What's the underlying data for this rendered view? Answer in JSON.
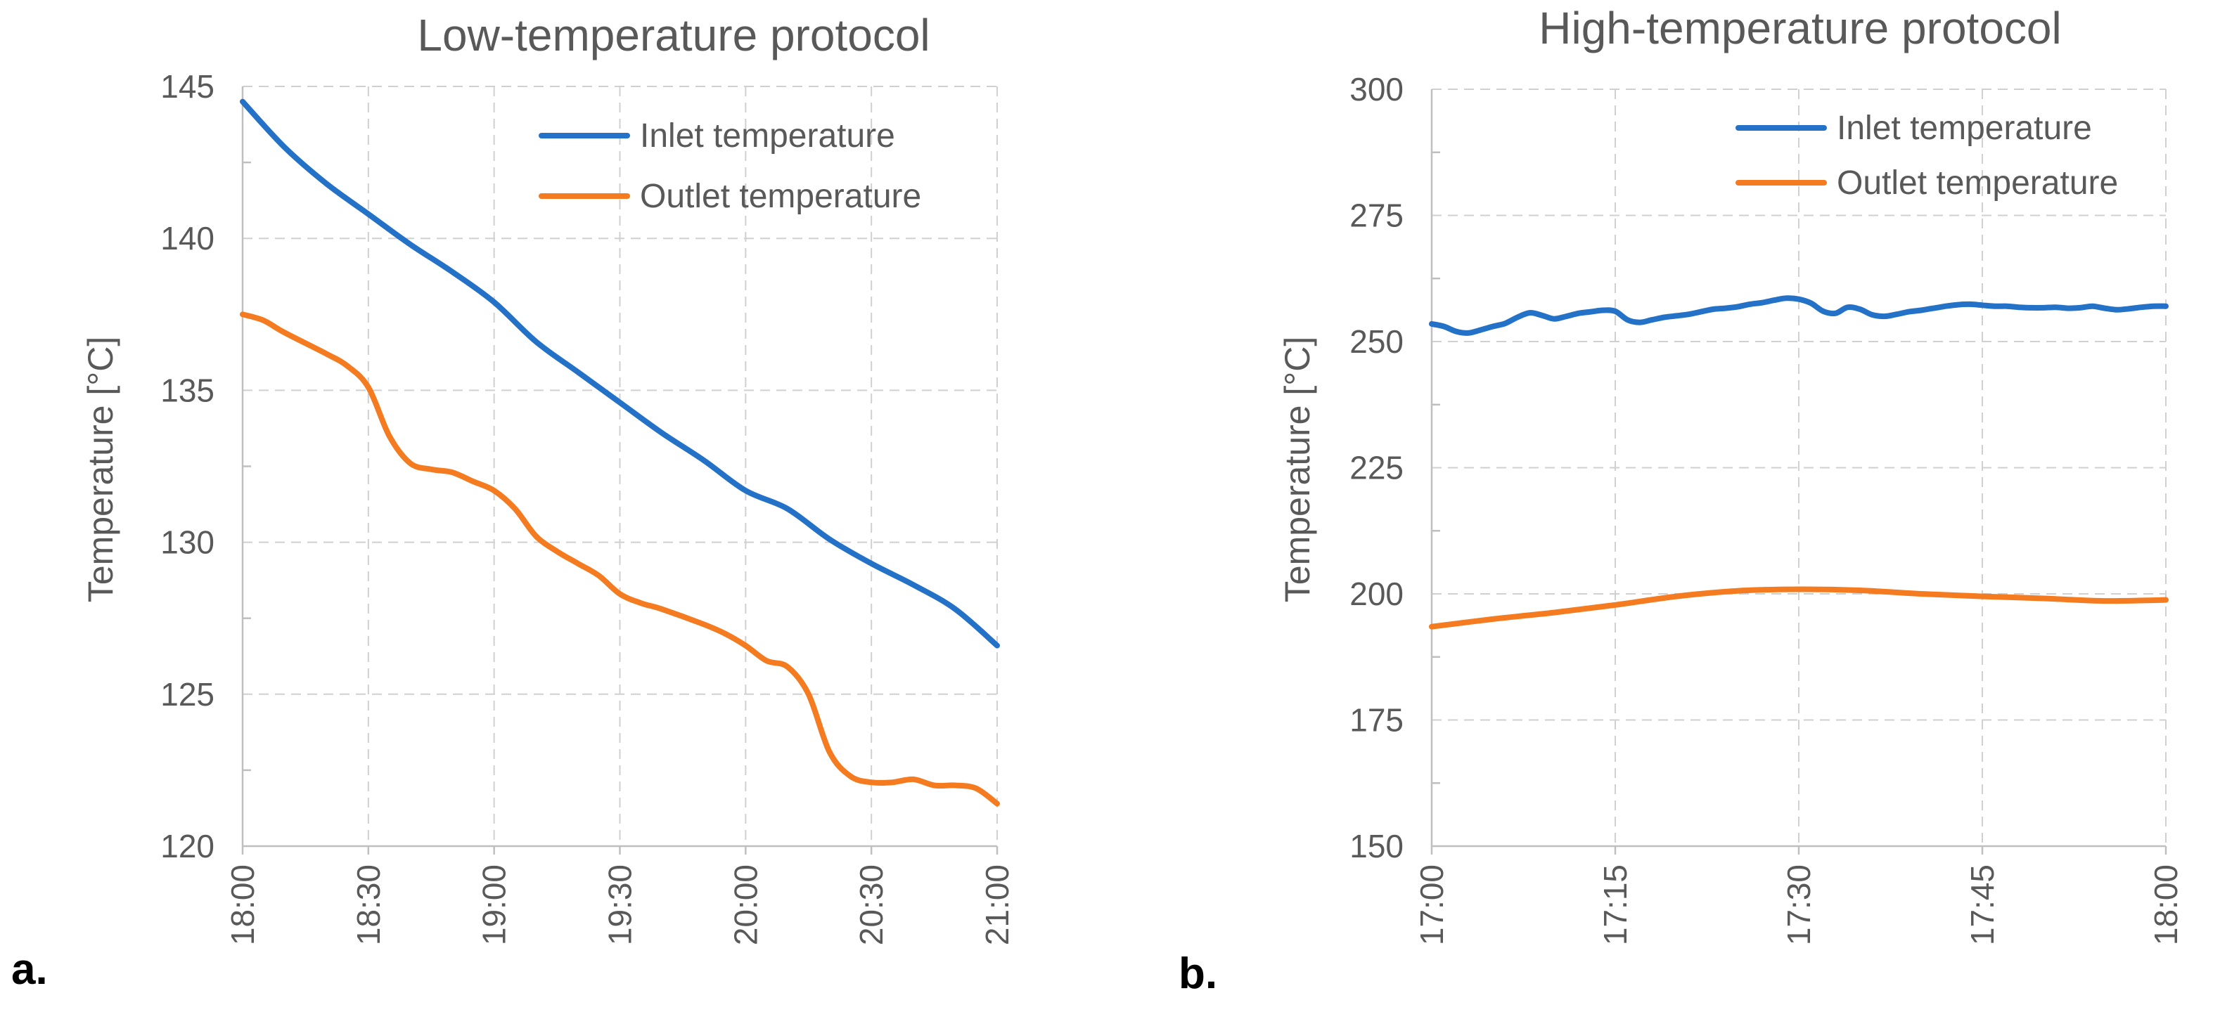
{
  "chart_data": [
    {
      "type": "line",
      "panel_label": "a.",
      "title": "Low-temperature protocol",
      "xlabel": "",
      "ylabel": "Temperature [°C]",
      "x_ticks": [
        "18:00",
        "18:30",
        "19:00",
        "19:30",
        "20:00",
        "20:30",
        "21:00"
      ],
      "x_range_minutes": [
        0,
        180
      ],
      "ylim": [
        120,
        145
      ],
      "y_ticks": [
        120,
        125,
        130,
        135,
        140,
        145
      ],
      "grid": true,
      "legend_position": "top-right",
      "series": [
        {
          "name": "Inlet temperature",
          "color": "#2472C8",
          "x_minutes": [
            0,
            10,
            20,
            30,
            40,
            50,
            60,
            70,
            80,
            90,
            100,
            110,
            120,
            130,
            140,
            150,
            160,
            170,
            180
          ],
          "values": [
            144.5,
            143.0,
            141.8,
            140.8,
            139.8,
            138.9,
            137.9,
            136.6,
            135.6,
            134.6,
            133.6,
            132.7,
            131.7,
            131.1,
            130.1,
            129.3,
            128.6,
            127.8,
            126.6
          ]
        },
        {
          "name": "Outlet temperature",
          "color": "#F47B20",
          "x_minutes": [
            0,
            5,
            10,
            20,
            25,
            30,
            35,
            40,
            45,
            50,
            55,
            60,
            65,
            70,
            75,
            80,
            85,
            90,
            95,
            100,
            110,
            115,
            120,
            125,
            130,
            135,
            140,
            145,
            150,
            155,
            160,
            165,
            170,
            175,
            180
          ],
          "values": [
            137.5,
            137.3,
            136.9,
            136.2,
            135.8,
            135.1,
            133.5,
            132.6,
            132.4,
            132.3,
            132.0,
            131.7,
            131.1,
            130.2,
            129.7,
            129.3,
            128.9,
            128.3,
            128.0,
            127.8,
            127.3,
            127.0,
            126.6,
            126.1,
            125.9,
            125.0,
            123.1,
            122.3,
            122.1,
            122.1,
            122.2,
            122.0,
            122.0,
            121.9,
            121.4
          ]
        }
      ]
    },
    {
      "type": "line",
      "panel_label": "b.",
      "title": "High-temperature protocol",
      "xlabel": "",
      "ylabel": "Temperature [°C]",
      "x_ticks": [
        "17:00",
        "17:15",
        "17:30",
        "17:45",
        "18:00"
      ],
      "x_range_minutes": [
        0,
        60
      ],
      "ylim": [
        150,
        300
      ],
      "y_ticks": [
        150,
        175,
        200,
        225,
        250,
        275,
        300
      ],
      "grid": true,
      "legend_position": "top-right",
      "series": [
        {
          "name": "Inlet temperature",
          "color": "#2472C8",
          "x_minutes": [
            0,
            1,
            2,
            3,
            4,
            5,
            6,
            7,
            8,
            9,
            10,
            11,
            12,
            13,
            14,
            15,
            16,
            17,
            18,
            19,
            20,
            21,
            22,
            23,
            24,
            25,
            26,
            27,
            28,
            29,
            30,
            31,
            32,
            33,
            34,
            35,
            36,
            37,
            38,
            39,
            40,
            41,
            42,
            43,
            44,
            45,
            46,
            47,
            48,
            49,
            50,
            51,
            52,
            53,
            54,
            55,
            56,
            57,
            58,
            59,
            60
          ],
          "values": [
            253.5,
            253.0,
            252.0,
            251.7,
            252.3,
            253.0,
            253.6,
            254.8,
            255.7,
            255.2,
            254.5,
            255.0,
            255.6,
            255.9,
            256.2,
            256.0,
            254.3,
            253.8,
            254.3,
            254.8,
            255.1,
            255.4,
            255.9,
            256.4,
            256.6,
            256.9,
            257.4,
            257.7,
            258.2,
            258.6,
            258.4,
            257.6,
            256.0,
            255.6,
            256.8,
            256.4,
            255.3,
            255.0,
            255.4,
            255.9,
            256.2,
            256.6,
            257.0,
            257.3,
            257.4,
            257.2,
            257.0,
            257.0,
            256.8,
            256.7,
            256.7,
            256.8,
            256.6,
            256.7,
            257.0,
            256.6,
            256.3,
            256.5,
            256.8,
            257.0,
            257.0
          ]
        },
        {
          "name": "Outlet temperature",
          "color": "#F47B20",
          "x_minutes": [
            0,
            5,
            10,
            15,
            20,
            25,
            30,
            35,
            40,
            45,
            50,
            55,
            60
          ],
          "values": [
            193.5,
            195.0,
            196.3,
            197.8,
            199.5,
            200.6,
            200.9,
            200.7,
            200.0,
            199.5,
            199.1,
            198.6,
            198.8
          ]
        }
      ]
    }
  ]
}
